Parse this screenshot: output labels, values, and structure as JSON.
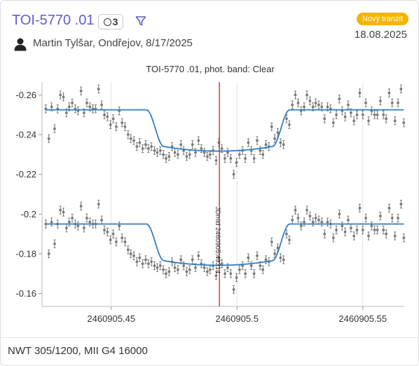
{
  "header": {
    "title": "TOI-5770 .01",
    "badge_count": "3",
    "observer": "Martin Tylšar, Ondřejov, 8/17/2025",
    "status_badge": "Nový tranzit",
    "date": "18.08.2025"
  },
  "colors": {
    "title": "#5e5fc4",
    "status_badge": "#f6b400",
    "model_line": "#2f7fc4",
    "midtime_line": "#cc2222",
    "points": "#7a7a7a"
  },
  "icons": [
    "circle-icon",
    "filter-icon",
    "user-icon"
  ],
  "footer": {
    "setup": "NWT 305/1200, MII G4 16000"
  },
  "chart_data": {
    "type": "scatter",
    "title": "TOI-5770 .01, phot. band: Clear",
    "xlim": [
      2460905.4225,
      2460905.5665
    ],
    "ylim": [
      -0.2665,
      -0.1535
    ],
    "y_inverted": true,
    "x_ticks": [
      "2460905.45",
      "2460905.5",
      "2460905.55"
    ],
    "x_tick_values": [
      2460905.45,
      2460905.5,
      2460905.55
    ],
    "y_ticks": [
      "-0.26",
      "-0.24",
      "-0.22",
      "-0.2",
      "-0.18",
      "-0.16"
    ],
    "y_tick_values": [
      -0.26,
      -0.24,
      -0.22,
      -0.2,
      -0.18,
      -0.16
    ],
    "grid": {
      "vertical": true,
      "horizontal": false
    },
    "midtime": {
      "x": 2460905.493,
      "label": "JDmid 2460905.49314"
    },
    "transit_model": {
      "ingress_start": 2460905.464,
      "ingress_end": 2460905.471,
      "egress_start": 2460905.514,
      "egress_end": 2460905.521,
      "depth": 0.0185,
      "curvature": 0.0023
    },
    "series": [
      {
        "baseline": -0.2525,
        "points": [
          [
            2460905.424,
            -0.253
          ],
          [
            2460905.4252,
            -0.238
          ],
          [
            2460905.4263,
            -0.254
          ],
          [
            2460905.4275,
            -0.243
          ],
          [
            2460905.4287,
            -0.253
          ],
          [
            2460905.4298,
            -0.26
          ],
          [
            2460905.431,
            -0.259
          ],
          [
            2460905.4322,
            -0.251
          ],
          [
            2460905.4333,
            -0.254
          ],
          [
            2460905.4345,
            -0.256
          ],
          [
            2460905.4357,
            -0.253
          ],
          [
            2460905.4368,
            -0.252
          ],
          [
            2460905.438,
            -0.262
          ],
          [
            2460905.4392,
            -0.251
          ],
          [
            2460905.4403,
            -0.256
          ],
          [
            2460905.4415,
            -0.254
          ],
          [
            2460905.4427,
            -0.253
          ],
          [
            2460905.4438,
            -0.253
          ],
          [
            2460905.445,
            -0.263
          ],
          [
            2460905.4462,
            -0.255
          ],
          [
            2460905.4473,
            -0.25
          ],
          [
            2460905.4485,
            -0.249
          ],
          [
            2460905.4497,
            -0.245
          ],
          [
            2460905.4508,
            -0.248
          ],
          [
            2460905.452,
            -0.244
          ],
          [
            2460905.4532,
            -0.252
          ],
          [
            2460905.4543,
            -0.246
          ],
          [
            2460905.4555,
            -0.244
          ],
          [
            2460905.4567,
            -0.24
          ],
          [
            2460905.4578,
            -0.238
          ],
          [
            2460905.459,
            -0.237
          ],
          [
            2460905.4602,
            -0.234
          ],
          [
            2460905.4613,
            -0.236
          ],
          [
            2460905.4625,
            -0.233
          ],
          [
            2460905.4637,
            -0.235
          ],
          [
            2460905.4648,
            -0.233
          ],
          [
            2460905.466,
            -0.234
          ],
          [
            2460905.4672,
            -0.232
          ],
          [
            2460905.4683,
            -0.231
          ],
          [
            2460905.4695,
            -0.232
          ],
          [
            2460905.4707,
            -0.23
          ],
          [
            2460905.4718,
            -0.228
          ],
          [
            2460905.473,
            -0.229
          ],
          [
            2460905.4742,
            -0.234
          ],
          [
            2460905.4753,
            -0.231
          ],
          [
            2460905.4765,
            -0.23
          ],
          [
            2460905.4777,
            -0.235
          ],
          [
            2460905.4788,
            -0.232
          ],
          [
            2460905.48,
            -0.229
          ],
          [
            2460905.4812,
            -0.23
          ],
          [
            2460905.4823,
            -0.235
          ],
          [
            2460905.4835,
            -0.231
          ],
          [
            2460905.4847,
            -0.237
          ],
          [
            2460905.4858,
            -0.233
          ],
          [
            2460905.487,
            -0.231
          ],
          [
            2460905.4882,
            -0.229
          ],
          [
            2460905.4893,
            -0.23
          ],
          [
            2460905.4905,
            -0.232
          ],
          [
            2460905.4917,
            -0.227
          ],
          [
            2460905.4928,
            -0.236
          ],
          [
            2460905.494,
            -0.233
          ],
          [
            2460905.4952,
            -0.228
          ],
          [
            2460905.4963,
            -0.231
          ],
          [
            2460905.4975,
            -0.228
          ],
          [
            2460905.4987,
            -0.22
          ],
          [
            2460905.4998,
            -0.226
          ],
          [
            2460905.501,
            -0.23
          ],
          [
            2460905.5022,
            -0.232
          ],
          [
            2460905.5033,
            -0.228
          ],
          [
            2460905.5045,
            -0.236
          ],
          [
            2460905.5057,
            -0.232
          ],
          [
            2460905.5068,
            -0.228
          ],
          [
            2460905.508,
            -0.237
          ],
          [
            2460905.5092,
            -0.232
          ],
          [
            2460905.5103,
            -0.23
          ],
          [
            2460905.5115,
            -0.235
          ],
          [
            2460905.5127,
            -0.234
          ],
          [
            2460905.5138,
            -0.244
          ],
          [
            2460905.515,
            -0.238
          ],
          [
            2460905.5162,
            -0.241
          ],
          [
            2460905.5173,
            -0.236
          ],
          [
            2460905.5185,
            -0.235
          ],
          [
            2460905.5197,
            -0.248
          ],
          [
            2460905.5208,
            -0.245
          ],
          [
            2460905.522,
            -0.255
          ],
          [
            2460905.5232,
            -0.26
          ],
          [
            2460905.5243,
            -0.256
          ],
          [
            2460905.5255,
            -0.252
          ],
          [
            2460905.5267,
            -0.254
          ],
          [
            2460905.5278,
            -0.26
          ],
          [
            2460905.529,
            -0.257
          ],
          [
            2460905.5302,
            -0.254
          ],
          [
            2460905.5313,
            -0.256
          ],
          [
            2460905.5325,
            -0.255
          ],
          [
            2460905.5337,
            -0.254
          ],
          [
            2460905.5348,
            -0.248
          ],
          [
            2460905.536,
            -0.254
          ],
          [
            2460905.5372,
            -0.253
          ],
          [
            2460905.5383,
            -0.246
          ],
          [
            2460905.5395,
            -0.25
          ],
          [
            2460905.5407,
            -0.258
          ],
          [
            2460905.5418,
            -0.252
          ],
          [
            2460905.543,
            -0.249
          ],
          [
            2460905.5442,
            -0.255
          ],
          [
            2460905.5453,
            -0.251
          ],
          [
            2460905.5465,
            -0.247
          ],
          [
            2460905.5477,
            -0.25
          ],
          [
            2460905.5488,
            -0.261
          ],
          [
            2460905.55,
            -0.25
          ],
          [
            2460905.5512,
            -0.256
          ],
          [
            2460905.5523,
            -0.247
          ],
          [
            2460905.5535,
            -0.252
          ],
          [
            2460905.5547,
            -0.25
          ],
          [
            2460905.5558,
            -0.25
          ],
          [
            2460905.557,
            -0.257
          ],
          [
            2460905.5582,
            -0.25
          ],
          [
            2460905.5593,
            -0.248
          ],
          [
            2460905.5605,
            -0.261
          ],
          [
            2460905.5617,
            -0.256
          ],
          [
            2460905.5628,
            -0.247
          ],
          [
            2460905.564,
            -0.256
          ],
          [
            2460905.5652,
            -0.263
          ],
          [
            2460905.5663,
            -0.246
          ]
        ]
      },
      {
        "baseline": -0.195,
        "points": [
          [
            2460905.424,
            -0.195
          ],
          [
            2460905.4252,
            -0.18
          ],
          [
            2460905.4263,
            -0.196
          ],
          [
            2460905.4275,
            -0.185
          ],
          [
            2460905.4287,
            -0.195
          ],
          [
            2460905.4298,
            -0.202
          ],
          [
            2460905.431,
            -0.201
          ],
          [
            2460905.4322,
            -0.193
          ],
          [
            2460905.4333,
            -0.196
          ],
          [
            2460905.4345,
            -0.198
          ],
          [
            2460905.4357,
            -0.195
          ],
          [
            2460905.4368,
            -0.194
          ],
          [
            2460905.438,
            -0.204
          ],
          [
            2460905.4392,
            -0.193
          ],
          [
            2460905.4403,
            -0.198
          ],
          [
            2460905.4415,
            -0.196
          ],
          [
            2460905.4427,
            -0.195
          ],
          [
            2460905.4438,
            -0.195
          ],
          [
            2460905.445,
            -0.205
          ],
          [
            2460905.4462,
            -0.197
          ],
          [
            2460905.4473,
            -0.192
          ],
          [
            2460905.4485,
            -0.191
          ],
          [
            2460905.4497,
            -0.187
          ],
          [
            2460905.4508,
            -0.19
          ],
          [
            2460905.452,
            -0.186
          ],
          [
            2460905.4532,
            -0.194
          ],
          [
            2460905.4543,
            -0.188
          ],
          [
            2460905.4555,
            -0.186
          ],
          [
            2460905.4567,
            -0.182
          ],
          [
            2460905.4578,
            -0.18
          ],
          [
            2460905.459,
            -0.179
          ],
          [
            2460905.4602,
            -0.176
          ],
          [
            2460905.4613,
            -0.178
          ],
          [
            2460905.4625,
            -0.175
          ],
          [
            2460905.4637,
            -0.177
          ],
          [
            2460905.4648,
            -0.175
          ],
          [
            2460905.466,
            -0.176
          ],
          [
            2460905.4672,
            -0.174
          ],
          [
            2460905.4683,
            -0.173
          ],
          [
            2460905.4695,
            -0.174
          ],
          [
            2460905.4707,
            -0.172
          ],
          [
            2460905.4718,
            -0.17
          ],
          [
            2460905.473,
            -0.171
          ],
          [
            2460905.4742,
            -0.176
          ],
          [
            2460905.4753,
            -0.173
          ],
          [
            2460905.4765,
            -0.172
          ],
          [
            2460905.4777,
            -0.177
          ],
          [
            2460905.4788,
            -0.174
          ],
          [
            2460905.48,
            -0.171
          ],
          [
            2460905.4812,
            -0.172
          ],
          [
            2460905.4823,
            -0.177
          ],
          [
            2460905.4835,
            -0.173
          ],
          [
            2460905.4847,
            -0.179
          ],
          [
            2460905.4858,
            -0.175
          ],
          [
            2460905.487,
            -0.173
          ],
          [
            2460905.4882,
            -0.171
          ],
          [
            2460905.4893,
            -0.172
          ],
          [
            2460905.4905,
            -0.174
          ],
          [
            2460905.4917,
            -0.169
          ],
          [
            2460905.4928,
            -0.178
          ],
          [
            2460905.494,
            -0.175
          ],
          [
            2460905.4952,
            -0.17
          ],
          [
            2460905.4963,
            -0.173
          ],
          [
            2460905.4975,
            -0.17
          ],
          [
            2460905.4987,
            -0.162
          ],
          [
            2460905.4998,
            -0.168
          ],
          [
            2460905.501,
            -0.172
          ],
          [
            2460905.5022,
            -0.174
          ],
          [
            2460905.5033,
            -0.17
          ],
          [
            2460905.5045,
            -0.178
          ],
          [
            2460905.5057,
            -0.174
          ],
          [
            2460905.5068,
            -0.17
          ],
          [
            2460905.508,
            -0.179
          ],
          [
            2460905.5092,
            -0.174
          ],
          [
            2460905.5103,
            -0.172
          ],
          [
            2460905.5115,
            -0.177
          ],
          [
            2460905.5127,
            -0.176
          ],
          [
            2460905.5138,
            -0.186
          ],
          [
            2460905.515,
            -0.18
          ],
          [
            2460905.5162,
            -0.183
          ],
          [
            2460905.5173,
            -0.178
          ],
          [
            2460905.5185,
            -0.177
          ],
          [
            2460905.5197,
            -0.19
          ],
          [
            2460905.5208,
            -0.187
          ],
          [
            2460905.522,
            -0.197
          ],
          [
            2460905.5232,
            -0.202
          ],
          [
            2460905.5243,
            -0.198
          ],
          [
            2460905.5255,
            -0.194
          ],
          [
            2460905.5267,
            -0.196
          ],
          [
            2460905.5278,
            -0.202
          ],
          [
            2460905.529,
            -0.199
          ],
          [
            2460905.5302,
            -0.196
          ],
          [
            2460905.5313,
            -0.198
          ],
          [
            2460905.5325,
            -0.197
          ],
          [
            2460905.5337,
            -0.196
          ],
          [
            2460905.5348,
            -0.19
          ],
          [
            2460905.536,
            -0.196
          ],
          [
            2460905.5372,
            -0.195
          ],
          [
            2460905.5383,
            -0.188
          ],
          [
            2460905.5395,
            -0.192
          ],
          [
            2460905.5407,
            -0.2
          ],
          [
            2460905.5418,
            -0.194
          ],
          [
            2460905.543,
            -0.191
          ],
          [
            2460905.5442,
            -0.197
          ],
          [
            2460905.5453,
            -0.193
          ],
          [
            2460905.5465,
            -0.189
          ],
          [
            2460905.5477,
            -0.192
          ],
          [
            2460905.5488,
            -0.203
          ],
          [
            2460905.55,
            -0.192
          ],
          [
            2460905.5512,
            -0.198
          ],
          [
            2460905.5523,
            -0.189
          ],
          [
            2460905.5535,
            -0.194
          ],
          [
            2460905.5547,
            -0.192
          ],
          [
            2460905.5558,
            -0.192
          ],
          [
            2460905.557,
            -0.199
          ],
          [
            2460905.5582,
            -0.192
          ],
          [
            2460905.5593,
            -0.19
          ],
          [
            2460905.5605,
            -0.203
          ],
          [
            2460905.5617,
            -0.198
          ],
          [
            2460905.5628,
            -0.189
          ],
          [
            2460905.564,
            -0.198
          ],
          [
            2460905.5652,
            -0.205
          ],
          [
            2460905.5663,
            -0.188
          ]
        ]
      }
    ],
    "error_bar": 0.002
  }
}
